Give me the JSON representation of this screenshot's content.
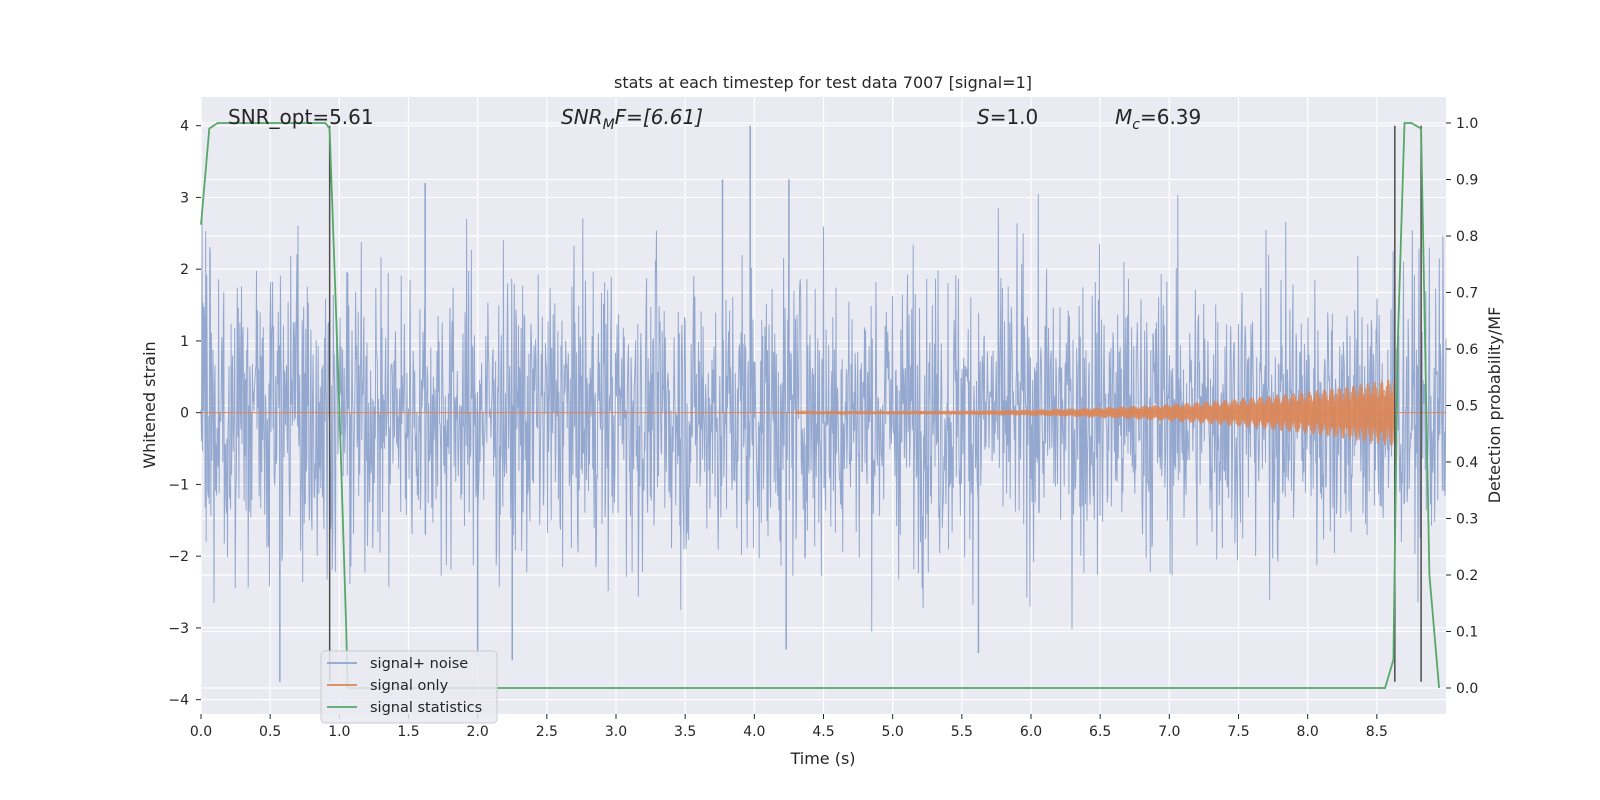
{
  "chart_data": {
    "type": "line",
    "title": "stats at each timestep for test data 7007 [signal=1]",
    "xlabel": "Time (s)",
    "ylabel": "Whitened strain",
    "y2label": "Detection probability/MF",
    "xlim": [
      0.0,
      9.0
    ],
    "ylim": [
      -4.2,
      4.4
    ],
    "y2lim": [
      -0.046,
      1.046
    ],
    "x_ticks": [
      "0.0",
      "0.5",
      "1.0",
      "1.5",
      "2.0",
      "2.5",
      "3.0",
      "3.5",
      "4.0",
      "4.5",
      "5.0",
      "5.5",
      "6.0",
      "6.5",
      "7.0",
      "7.5",
      "8.0",
      "8.5"
    ],
    "y_ticks": [
      "−4",
      "−3",
      "−2",
      "−1",
      "0",
      "1",
      "2",
      "3",
      "4"
    ],
    "y2_ticks": [
      "0.0",
      "0.1",
      "0.2",
      "0.3",
      "0.4",
      "0.5",
      "0.6",
      "0.7",
      "0.8",
      "0.9",
      "1.0"
    ],
    "grid": true,
    "legend_position": "lower-left",
    "annotations": {
      "snr_opt": "SNR_opt=5.61",
      "snr_mf_main": "SNR",
      "snr_mf_sub": "M",
      "snr_mf_rest": "F=[6.61]",
      "s_italic": "S",
      "s_rest": "=1.0",
      "mc_main": "M",
      "mc_sub": "c",
      "mc_rest": "=6.39"
    },
    "series": [
      {
        "name": "signal+ noise",
        "color": "#8fa4cc",
        "kind": "noise",
        "x_range": [
          0.0,
          9.0
        ],
        "spread": 1.0,
        "extreme_points": [
          {
            "x": 0.57,
            "y": -3.75
          },
          {
            "x": 2.0,
            "y": -3.4
          },
          {
            "x": 2.25,
            "y": -3.45
          },
          {
            "x": 3.97,
            "y": 4.0
          },
          {
            "x": 1.62,
            "y": 3.2
          },
          {
            "x": 3.77,
            "y": 3.25
          },
          {
            "x": 4.25,
            "y": 3.25
          },
          {
            "x": 4.23,
            "y": -3.3
          },
          {
            "x": 5.62,
            "y": -3.35
          }
        ]
      },
      {
        "name": "signal only",
        "color": "#dd8452",
        "kind": "chirp",
        "start_x": 4.3,
        "end_x": 8.63,
        "start_amp": 0.02,
        "end_amp": 0.48
      },
      {
        "name": "signal statistics",
        "color": "#55a868",
        "kind": "line",
        "axis": "right",
        "x": [
          0.0,
          0.06,
          0.12,
          0.2,
          0.4,
          0.6,
          0.8,
          0.9,
          0.93,
          1.0,
          1.05,
          1.06,
          1.2,
          2.0,
          3.0,
          4.0,
          5.0,
          6.0,
          7.0,
          8.0,
          8.5,
          8.56,
          8.62,
          8.65,
          8.7,
          8.75,
          8.82,
          8.88,
          8.95
        ],
        "y": [
          0.82,
          0.99,
          1.0,
          1.0,
          1.0,
          1.0,
          1.0,
          1.0,
          0.99,
          0.5,
          0.1,
          0.0,
          0.0,
          0.0,
          0.0,
          0.0,
          0.0,
          0.0,
          0.0,
          0.0,
          0.0,
          0.0,
          0.05,
          0.6,
          1.0,
          1.0,
          0.99,
          0.2,
          0.0
        ]
      }
    ],
    "vertical_lines": [
      {
        "x": 0.93,
        "ylim": [
          -3.75,
          4.0
        ],
        "color": "#4d4d4d"
      },
      {
        "x": 8.63,
        "ylim": [
          -3.75,
          4.0
        ],
        "color": "#4d4d4d"
      },
      {
        "x": 8.82,
        "ylim": [
          -3.75,
          4.0
        ],
        "color": "#4d4d4d"
      }
    ]
  }
}
